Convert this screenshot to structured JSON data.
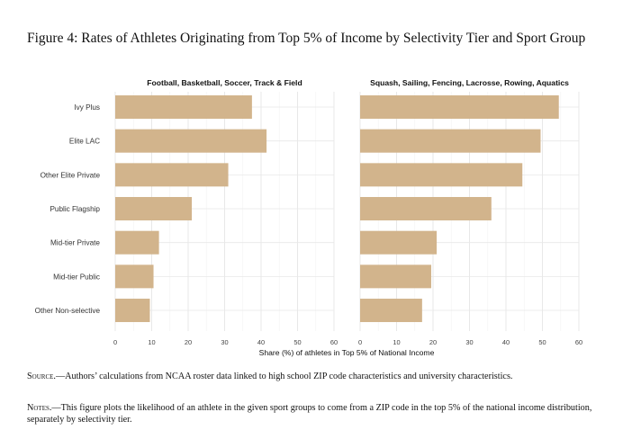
{
  "figure": {
    "title": "Figure 4:  Rates of Athletes Originating from Top 5% of Income by Selectivity Tier and Sport Group",
    "source_lead": "Source",
    "source_text": ".—Authors’ calculations from NCAA roster data linked to high school ZIP code characteristics and university characteristics.",
    "notes_lead": "Notes",
    "notes_text": ".—This figure plots the likelihood of an athlete in the given sport groups to come from a ZIP code in the top 5% of the national income distribution, separately by selectivity tier."
  },
  "chart_data": {
    "type": "bar",
    "orientation": "horizontal",
    "title": "Figure 4: Rates of Athletes Originating from Top 5% of Income by Selectivity Tier and Sport Group",
    "xlabel": "Share (%) of athletes in Top 5% of National Income",
    "ylabel": "",
    "xlim": [
      0,
      60
    ],
    "xticks": [
      0,
      10,
      20,
      30,
      40,
      50,
      60
    ],
    "grid": true,
    "bar_color": "#d2b48c",
    "categories": [
      "Ivy Plus",
      "Elite LAC",
      "Other Elite Private",
      "Public Flagship",
      "Mid-tier Private",
      "Mid-tier Public",
      "Other Non-selective"
    ],
    "panels": [
      {
        "name": "Football, Basketball, Soccer, Track & Field",
        "values": [
          37.5,
          41.5,
          31,
          21,
          12,
          10.5,
          9.5
        ]
      },
      {
        "name": "Squash, Sailing, Fencing, Lacrosse, Rowing, Aquatics",
        "values": [
          54.5,
          49.5,
          44.5,
          36,
          21,
          19.5,
          17
        ]
      }
    ]
  }
}
